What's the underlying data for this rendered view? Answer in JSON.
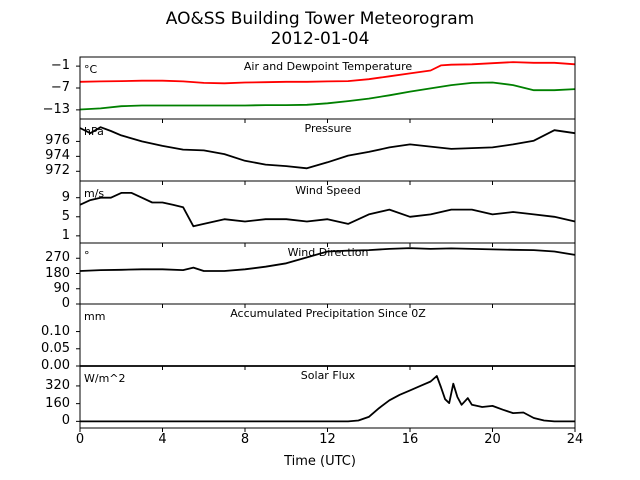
{
  "title_line1": "AO&SS Building Tower Meteorogram",
  "title_line2": "2012-01-04",
  "xlabel": "Time (UTC)",
  "xticks": [
    "0",
    "4",
    "8",
    "12",
    "16",
    "20",
    "24"
  ],
  "chart_data": [
    {
      "type": "line",
      "title": "Air and Dewpoint Temperature",
      "unit": "°C",
      "xlim": [
        0,
        24
      ],
      "ylim": [
        -15.5,
        1.5
      ],
      "yticks": [
        -1,
        -7,
        -13
      ],
      "ytick_labels": [
        "−1",
        "−7",
        "−13"
      ],
      "series": [
        {
          "color": "#ff0000",
          "x": [
            0,
            1,
            2,
            3,
            4,
            5,
            6,
            7,
            8,
            9,
            10,
            11,
            12,
            13,
            14,
            15,
            16,
            17,
            17.5,
            18,
            19,
            20,
            21,
            22,
            23,
            24
          ],
          "y": [
            -5.3,
            -5.2,
            -5.1,
            -5.0,
            -5.0,
            -5.2,
            -5.6,
            -5.7,
            -5.5,
            -5.4,
            -5.3,
            -5.3,
            -5.2,
            -5.1,
            -4.6,
            -3.8,
            -3.0,
            -2.2,
            -0.8,
            -0.6,
            -0.5,
            -0.2,
            0.1,
            -0.1,
            -0.1,
            -0.5
          ]
        },
        {
          "color": "#008000",
          "x": [
            0,
            1,
            2,
            3,
            4,
            5,
            6,
            7,
            8,
            9,
            10,
            11,
            12,
            13,
            14,
            15,
            16,
            17,
            18,
            19,
            20,
            21,
            22,
            23,
            24
          ],
          "y": [
            -12.9,
            -12.6,
            -12.0,
            -11.8,
            -11.8,
            -11.8,
            -11.8,
            -11.8,
            -11.8,
            -11.7,
            -11.7,
            -11.6,
            -11.2,
            -10.6,
            -9.9,
            -9.0,
            -8.0,
            -7.1,
            -6.2,
            -5.6,
            -5.5,
            -6.2,
            -7.6,
            -7.6,
            -7.3
          ]
        }
      ]
    },
    {
      "type": "line",
      "title": "Pressure",
      "unit": "hPa",
      "xlim": [
        0,
        24
      ],
      "ylim": [
        970.7,
        979.0
      ],
      "yticks": [
        976,
        974,
        972
      ],
      "ytick_labels": [
        "976",
        "974",
        "972"
      ],
      "series": [
        {
          "color": "#000000",
          "x": [
            0,
            0.5,
            1,
            1.5,
            2,
            3,
            4,
            5,
            6,
            7,
            8,
            9,
            10,
            11,
            12,
            13,
            14,
            15,
            16,
            17,
            18,
            19,
            20,
            21,
            22,
            23,
            24
          ],
          "y": [
            977.8,
            977.1,
            977.9,
            977.4,
            976.8,
            976.0,
            975.4,
            974.9,
            974.8,
            974.3,
            973.4,
            972.9,
            972.7,
            972.4,
            973.2,
            974.1,
            974.6,
            975.2,
            975.6,
            975.3,
            975.0,
            975.1,
            975.2,
            975.6,
            976.1,
            977.5,
            977.1
          ]
        }
      ]
    },
    {
      "type": "line",
      "title": "Wind Speed",
      "unit": "m/s",
      "xlim": [
        0,
        24
      ],
      "ylim": [
        -0.5,
        12.5
      ],
      "yticks": [
        9,
        5,
        1
      ],
      "ytick_labels": [
        "9",
        "5",
        "1"
      ],
      "series": [
        {
          "color": "#000000",
          "x": [
            0,
            0.5,
            1,
            1.5,
            2,
            2.5,
            3,
            3.5,
            4,
            4.5,
            5,
            5.5,
            6,
            7,
            8,
            9,
            10,
            11,
            12,
            13,
            14,
            15,
            16,
            17,
            18,
            19,
            20,
            21,
            22,
            23,
            24
          ],
          "y": [
            7.5,
            8.5,
            9.0,
            9.0,
            10.0,
            10.0,
            9.0,
            8.0,
            8.0,
            7.5,
            7.0,
            3.0,
            3.5,
            4.5,
            4.0,
            4.5,
            4.5,
            4.0,
            4.5,
            3.5,
            5.5,
            6.5,
            5.0,
            5.5,
            6.5,
            6.5,
            5.5,
            6.0,
            5.5,
            5.0,
            4.0
          ]
        }
      ]
    },
    {
      "type": "line",
      "title": "Wind Direction",
      "unit": "°",
      "xlim": [
        0,
        24
      ],
      "ylim": [
        0,
        360
      ],
      "yticks": [
        270,
        180,
        90,
        0
      ],
      "ytick_labels": [
        "270",
        "180",
        "90",
        "0"
      ],
      "series": [
        {
          "color": "#000000",
          "x": [
            0,
            1,
            2,
            3,
            4,
            5,
            5.5,
            6,
            7,
            8,
            9,
            10,
            11,
            12,
            13,
            14,
            15,
            16,
            17,
            18,
            19,
            20,
            21,
            22,
            23,
            24
          ],
          "y": [
            195,
            200,
            202,
            205,
            205,
            200,
            215,
            195,
            195,
            205,
            220,
            240,
            275,
            310,
            315,
            318,
            325,
            330,
            325,
            328,
            325,
            322,
            320,
            318,
            310,
            290
          ]
        }
      ]
    },
    {
      "type": "line",
      "title": "Accumulated Precipitation Since 0Z",
      "unit": "mm",
      "xlim": [
        0,
        24
      ],
      "ylim": [
        0,
        0.18
      ],
      "yticks": [
        0.1,
        0.05,
        0.0
      ],
      "ytick_labels": [
        "0.10",
        "0.05",
        "0.00"
      ],
      "series": [
        {
          "color": "#000000",
          "x": [
            0,
            24
          ],
          "y": [
            0,
            0
          ]
        }
      ]
    },
    {
      "type": "line",
      "title": "Solar Flux",
      "unit": "W/m^2",
      "xlim": [
        0,
        24
      ],
      "ylim": [
        -60,
        500
      ],
      "yticks": [
        320,
        160,
        0
      ],
      "ytick_labels": [
        "320",
        "160",
        "0"
      ],
      "series": [
        {
          "color": "#000000",
          "x": [
            0,
            13.0,
            13.5,
            14,
            14.5,
            15,
            15.5,
            16,
            16.5,
            17,
            17.3,
            17.5,
            17.7,
            17.9,
            18.1,
            18.3,
            18.5,
            18.8,
            19,
            19.5,
            20,
            20.5,
            21,
            21.5,
            22,
            22.5,
            23,
            24
          ],
          "y": [
            0,
            0,
            8,
            40,
            120,
            190,
            240,
            280,
            320,
            360,
            410,
            310,
            200,
            165,
            340,
            220,
            150,
            210,
            150,
            130,
            140,
            105,
            75,
            80,
            30,
            8,
            0,
            0
          ]
        }
      ]
    }
  ]
}
